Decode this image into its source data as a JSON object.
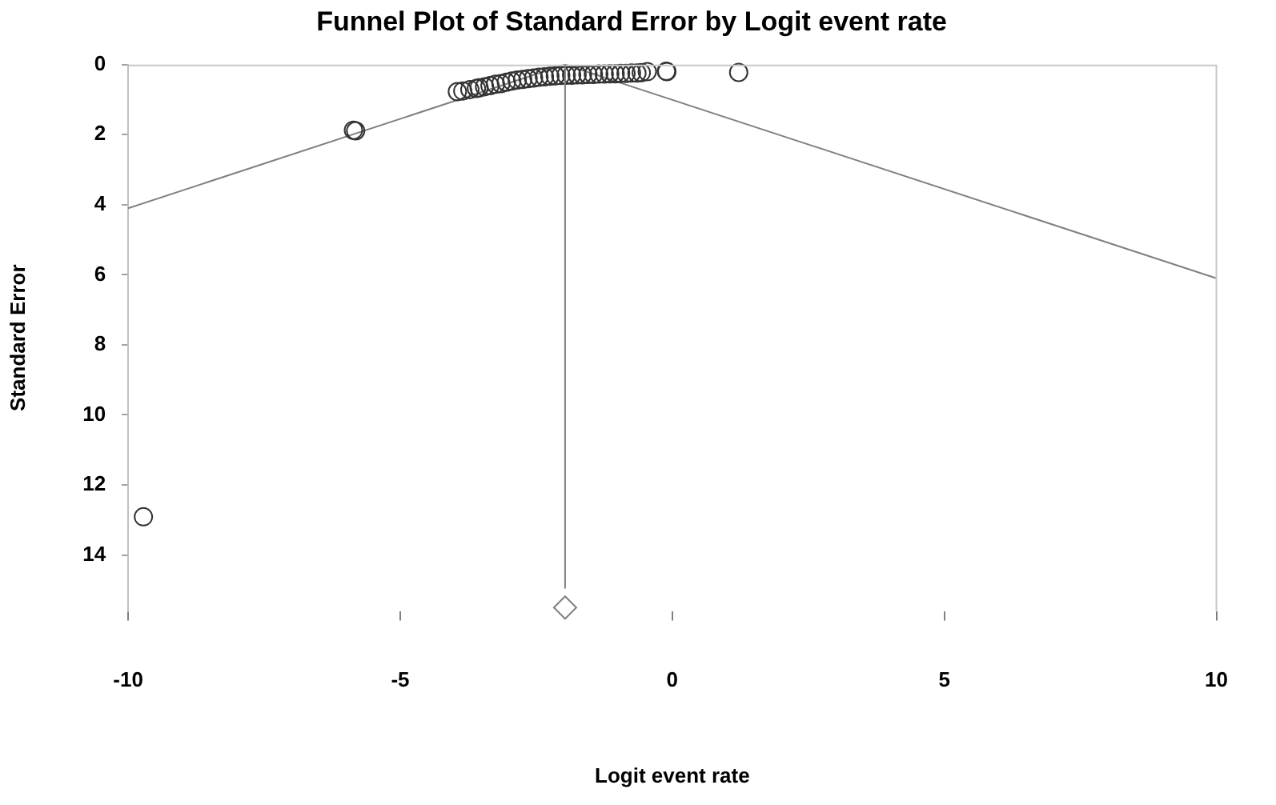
{
  "chart_data": {
    "type": "scatter",
    "title": "Funnel Plot of Standard Error by Logit event rate",
    "xlabel": "Logit event rate",
    "ylabel": "Standard Error",
    "xlim": [
      -10,
      10
    ],
    "xticks": [
      -10,
      -5,
      0,
      5,
      10
    ],
    "ylim": [
      15.6,
      0
    ],
    "yticks": [
      0,
      2,
      4,
      6,
      8,
      10,
      12,
      14
    ],
    "grid": false,
    "legend": false,
    "series": [
      {
        "type": "scatter",
        "color": "#333333",
        "marker": "circle",
        "x": [
          -9.72,
          -5.82,
          -5.86,
          -3.95,
          -3.85,
          -3.72,
          -3.6,
          -3.55,
          -3.45,
          -3.35,
          -3.25,
          -3.15,
          -3.05,
          -2.95,
          -2.85,
          -2.75,
          -2.65,
          -2.55,
          -2.45,
          -2.35,
          -2.25,
          -2.15,
          -2.05,
          -1.95,
          -1.85,
          -1.75,
          -1.65,
          -1.55,
          -1.45,
          -1.35,
          -1.25,
          -1.15,
          -1.05,
          -0.95,
          -0.85,
          -0.75,
          -0.65,
          -0.57,
          -0.46,
          -0.11,
          -0.1,
          1.22
        ],
        "values": [
          12.91,
          1.89,
          1.87,
          0.77,
          0.75,
          0.71,
          0.68,
          0.66,
          0.63,
          0.6,
          0.56,
          0.54,
          0.5,
          0.47,
          0.44,
          0.42,
          0.4,
          0.38,
          0.36,
          0.35,
          0.33,
          0.32,
          0.31,
          0.3,
          0.3,
          0.29,
          0.29,
          0.28,
          0.28,
          0.27,
          0.27,
          0.26,
          0.26,
          0.25,
          0.25,
          0.24,
          0.24,
          0.23,
          0.2,
          0.19,
          0.2,
          0.22
        ]
      },
      {
        "type": "scatter",
        "color": "#808080",
        "marker": "diamond",
        "x": [
          -1.97
        ],
        "values": [
          15.5
        ]
      },
      {
        "type": "line",
        "color": "#808080",
        "marker": "none",
        "x": [
          -10,
          -1.97
        ],
        "values": [
          4.1,
          0
        ]
      },
      {
        "type": "line",
        "color": "#808080",
        "marker": "none",
        "x": [
          -1.97,
          10
        ],
        "values": [
          0,
          6.1
        ]
      }
    ],
    "ref_lines": [
      {
        "axis": "x",
        "value": -1.97,
        "color": "#808080"
      }
    ]
  }
}
